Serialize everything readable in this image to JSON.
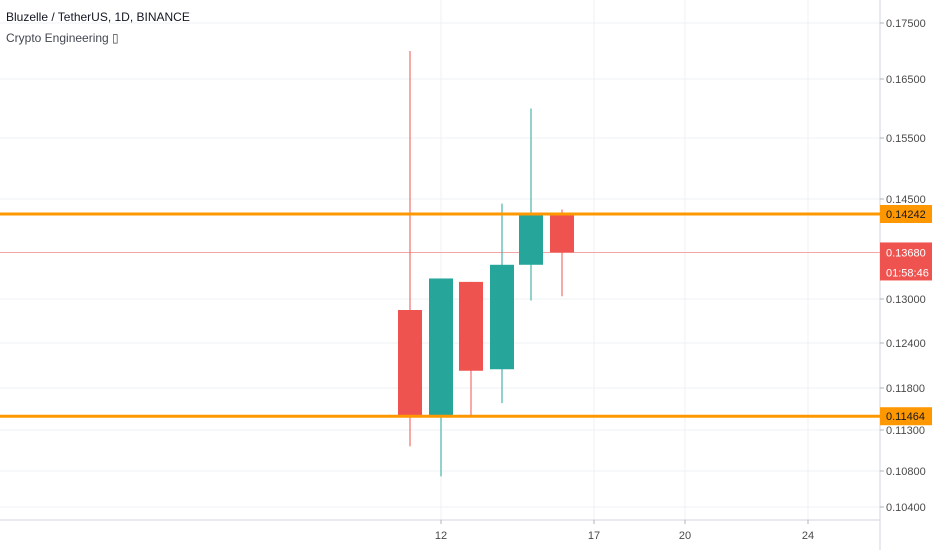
{
  "header": {
    "symbol_title": "Bluzelle / TetherUS, 1D, BINANCE",
    "indicator_label": "Crypto Engineering ▯"
  },
  "colors": {
    "up": "#26a69a",
    "down": "#ef5350",
    "level_line": "#ff9800",
    "last_price_line": "#f4a5a5",
    "grid": "#eef1f4",
    "axis_text": "#4a4a4a"
  },
  "chart_data": {
    "type": "candlestick",
    "y_ticks": [
      "0.10400",
      "0.10800",
      "0.11300",
      "0.11800",
      "0.12400",
      "0.13000",
      "0.14500",
      "0.15500",
      "0.16500",
      "0.17500"
    ],
    "x_ticks": [
      {
        "day": 12,
        "label": "12"
      },
      {
        "day": 17,
        "label": "17"
      },
      {
        "day": 20,
        "label": "20"
      },
      {
        "day": 24,
        "label": "24"
      }
    ],
    "candles": [
      {
        "day": 11,
        "open": 0.1285,
        "high": 0.17,
        "low": 0.111,
        "close": 0.1147
      },
      {
        "day": 12,
        "open": 0.1147,
        "high": 0.133,
        "low": 0.1074,
        "close": 0.133
      },
      {
        "day": 13,
        "open": 0.1325,
        "high": 0.1325,
        "low": 0.1147,
        "close": 0.1203
      },
      {
        "day": 14,
        "open": 0.1205,
        "high": 0.1442,
        "low": 0.1162,
        "close": 0.135
      },
      {
        "day": 15,
        "open": 0.135,
        "high": 0.16,
        "low": 0.1298,
        "close": 0.1424
      },
      {
        "day": 16,
        "open": 0.1426,
        "high": 0.1432,
        "low": 0.1304,
        "close": 0.1368
      }
    ],
    "horizontal_levels": [
      {
        "value": 0.14242,
        "label": "0.14242"
      },
      {
        "value": 0.11464,
        "label": "0.11464"
      }
    ],
    "last_price": {
      "value": 0.1368,
      "label": "0.13680",
      "countdown": "01:58:46"
    }
  }
}
